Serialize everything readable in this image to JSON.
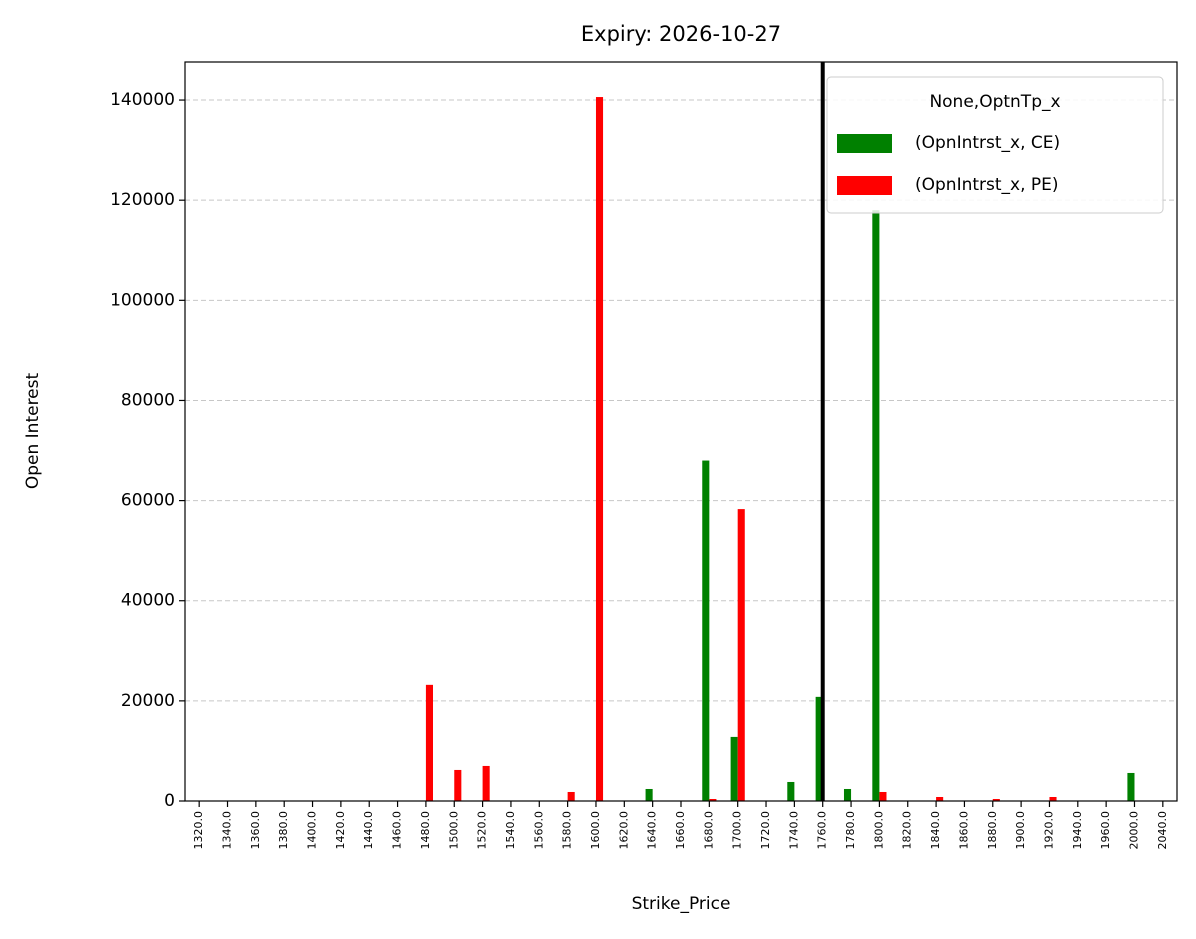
{
  "chart_data": {
    "type": "bar",
    "title": "Expiry: 2026-10-27",
    "x_label": "Strike_Price",
    "y_label": "Open Interest",
    "categories": [
      "1320.0",
      "1340.0",
      "1360.0",
      "1380.0",
      "1400.0",
      "1420.0",
      "1440.0",
      "1460.0",
      "1480.0",
      "1500.0",
      "1520.0",
      "1540.0",
      "1560.0",
      "1580.0",
      "1600.0",
      "1620.0",
      "1640.0",
      "1660.0",
      "1680.0",
      "1700.0",
      "1720.0",
      "1740.0",
      "1760.0",
      "1780.0",
      "1800.0",
      "1820.0",
      "1840.0",
      "1860.0",
      "1880.0",
      "1900.0",
      "1920.0",
      "1940.0",
      "1960.0",
      "2000.0",
      "2040.0"
    ],
    "series": [
      {
        "name": "(OpnIntrst_x, CE)",
        "color": "#008000",
        "values": [
          0,
          0,
          0,
          0,
          0,
          0,
          0,
          0,
          0,
          0,
          0,
          0,
          0,
          0,
          0,
          0,
          2400,
          0,
          68000,
          12800,
          0,
          3800,
          20800,
          2400,
          118000,
          0,
          0,
          0,
          0,
          0,
          0,
          0,
          0,
          5600,
          0
        ]
      },
      {
        "name": "(OpnIntrst_x, PE)",
        "color": "#ff0000",
        "values": [
          0,
          0,
          0,
          0,
          0,
          0,
          0,
          0,
          23200,
          6200,
          7000,
          0,
          0,
          1800,
          140600,
          0,
          0,
          0,
          400,
          58300,
          0,
          0,
          0,
          0,
          1800,
          0,
          800,
          0,
          400,
          0,
          800,
          0,
          0,
          0,
          0
        ]
      }
    ],
    "legend_title": "None,OptnTp_x",
    "legend_position": "upper right",
    "ylim": [
      0,
      147600
    ],
    "yticks": [
      0,
      20000,
      40000,
      60000,
      80000,
      100000,
      120000,
      140000
    ],
    "grid": true,
    "marker_line": {
      "category": "1760.0",
      "color": "#000000"
    }
  }
}
